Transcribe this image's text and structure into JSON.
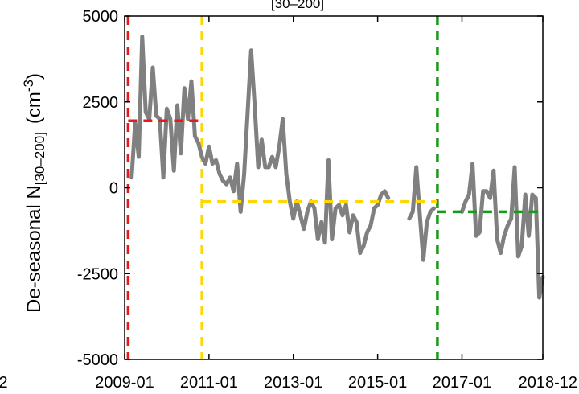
{
  "chart_data": {
    "type": "line",
    "title_fragment": "[30–200]",
    "ylabel": {
      "main": "De-seasonal N",
      "subscript": "[30–200]",
      "unit_open": "(cm",
      "unit_sup": "-3",
      "unit_close": ")"
    },
    "xlabel": "",
    "left_edge_tick_fragment": "2",
    "xlim": [
      "2009-01",
      "2018-12"
    ],
    "ylim": [
      -5000,
      5000
    ],
    "x_ticks": [
      "2009-01",
      "2011-01",
      "2013-01",
      "2015-01",
      "2017-01",
      "2018-12"
    ],
    "y_ticks": [
      5000,
      2500,
      0,
      -2500,
      -5000
    ],
    "y_tick_labels": [
      "5000",
      "2500",
      "0",
      "-2500",
      "-5000"
    ],
    "grid": false,
    "colors": {
      "series": "#808080",
      "period1": "#e41a1c",
      "period2": "#ffd700",
      "period3": "#1a9a1a"
    },
    "series": [
      {
        "segments": [
          [
            [
              "2009-03",
              300
            ],
            [
              "2009-04",
              1900
            ],
            [
              "2009-05",
              900
            ],
            [
              "2009-06",
              4400
            ],
            [
              "2009-07",
              2200
            ],
            [
              "2009-08",
              2000
            ],
            [
              "2009-09",
              3500
            ],
            [
              "2009-10",
              2100
            ],
            [
              "2009-11",
              2000
            ],
            [
              "2009-12",
              300
            ],
            [
              "2010-01",
              2300
            ],
            [
              "2010-02",
              2000
            ],
            [
              "2010-03",
              500
            ],
            [
              "2010-04",
              2400
            ],
            [
              "2010-05",
              1000
            ],
            [
              "2010-06",
              2900
            ],
            [
              "2010-07",
              2000
            ],
            [
              "2010-08",
              3100
            ],
            [
              "2010-09",
              1500
            ],
            [
              "2010-10",
              1300
            ],
            [
              "2010-11",
              900
            ],
            [
              "2010-12",
              700
            ],
            [
              "2011-01",
              1200
            ],
            [
              "2011-02",
              700
            ],
            [
              "2011-03",
              800
            ],
            [
              "2011-04",
              400
            ],
            [
              "2011-05",
              200
            ],
            [
              "2011-06",
              100
            ],
            [
              "2011-07",
              300
            ],
            [
              "2011-08",
              -100
            ],
            [
              "2011-09",
              700
            ],
            [
              "2011-10",
              -700
            ],
            [
              "2011-11",
              400
            ],
            [
              "2012-01",
              4000
            ],
            [
              "2012-02",
              2400
            ],
            [
              "2012-03",
              600
            ],
            [
              "2012-04",
              1400
            ],
            [
              "2012-05",
              600
            ],
            [
              "2012-06",
              600
            ],
            [
              "2012-07",
              900
            ],
            [
              "2012-08",
              600
            ],
            [
              "2012-09",
              1200
            ],
            [
              "2012-10",
              2000
            ],
            [
              "2012-11",
              400
            ],
            [
              "2012-12",
              -400
            ],
            [
              "2013-01",
              -900
            ],
            [
              "2013-02",
              -400
            ],
            [
              "2013-03",
              -800
            ],
            [
              "2013-04",
              -1200
            ],
            [
              "2013-05",
              -700
            ],
            [
              "2013-06",
              -400
            ],
            [
              "2013-07",
              -600
            ],
            [
              "2013-08",
              -1500
            ],
            [
              "2013-09",
              -1000
            ],
            [
              "2013-10",
              -1600
            ],
            [
              "2013-11",
              800
            ],
            [
              "2013-12",
              -1500
            ],
            [
              "2014-01",
              -600
            ],
            [
              "2014-02",
              -500
            ],
            [
              "2014-03",
              -800
            ],
            [
              "2014-04",
              -500
            ],
            [
              "2014-05",
              -1300
            ],
            [
              "2014-06",
              -800
            ],
            [
              "2014-07",
              -1000
            ],
            [
              "2014-08",
              -1900
            ],
            [
              "2014-09",
              -1700
            ],
            [
              "2014-10",
              -1300
            ],
            [
              "2014-11",
              -1100
            ],
            [
              "2014-12",
              -600
            ],
            [
              "2015-01",
              -500
            ],
            [
              "2015-02",
              -200
            ],
            [
              "2015-03",
              -100
            ],
            [
              "2015-04",
              -300
            ]
          ],
          [
            [
              "2015-10",
              -900
            ],
            [
              "2015-11",
              -700
            ],
            [
              "2015-12",
              600
            ],
            [
              "2016-01",
              -800
            ],
            [
              "2016-02",
              -2100
            ],
            [
              "2016-03",
              -1000
            ],
            [
              "2016-04",
              -700
            ],
            [
              "2016-05",
              -600
            ]
          ],
          [
            [
              "2017-01",
              -700
            ],
            [
              "2017-02",
              -400
            ],
            [
              "2017-03",
              -200
            ],
            [
              "2017-04",
              700
            ],
            [
              "2017-05",
              -1400
            ],
            [
              "2017-06",
              -1300
            ],
            [
              "2017-07",
              -100
            ],
            [
              "2017-08",
              -100
            ],
            [
              "2017-09",
              -300
            ],
            [
              "2017-10",
              500
            ],
            [
              "2017-11",
              -1500
            ],
            [
              "2017-12",
              -1900
            ],
            [
              "2018-01",
              -1400
            ],
            [
              "2018-02",
              -1100
            ],
            [
              "2018-03",
              -900
            ],
            [
              "2018-04",
              600
            ],
            [
              "2018-05",
              -2000
            ],
            [
              "2018-06",
              -1700
            ],
            [
              "2018-07",
              -200
            ],
            [
              "2018-08",
              -1400
            ],
            [
              "2018-09",
              -200
            ],
            [
              "2018-10",
              -300
            ],
            [
              "2018-11",
              -3200
            ],
            [
              "2018-12",
              -2600
            ]
          ]
        ]
      }
    ],
    "period_lines": [
      {
        "color_key": "period1",
        "x": "2009-02"
      },
      {
        "color_key": "period2",
        "x": "2010-11"
      },
      {
        "color_key": "period3",
        "x": "2016-06"
      }
    ],
    "period_means": [
      {
        "color_key": "period1",
        "x_start": "2009-02",
        "x_end": "2010-11",
        "y": 1950
      },
      {
        "color_key": "period2",
        "x_start": "2010-11",
        "x_end": "2016-06",
        "y": -400
      },
      {
        "color_key": "period3",
        "x_start": "2016-06",
        "x_end": "2018-12",
        "y": -700
      }
    ]
  }
}
